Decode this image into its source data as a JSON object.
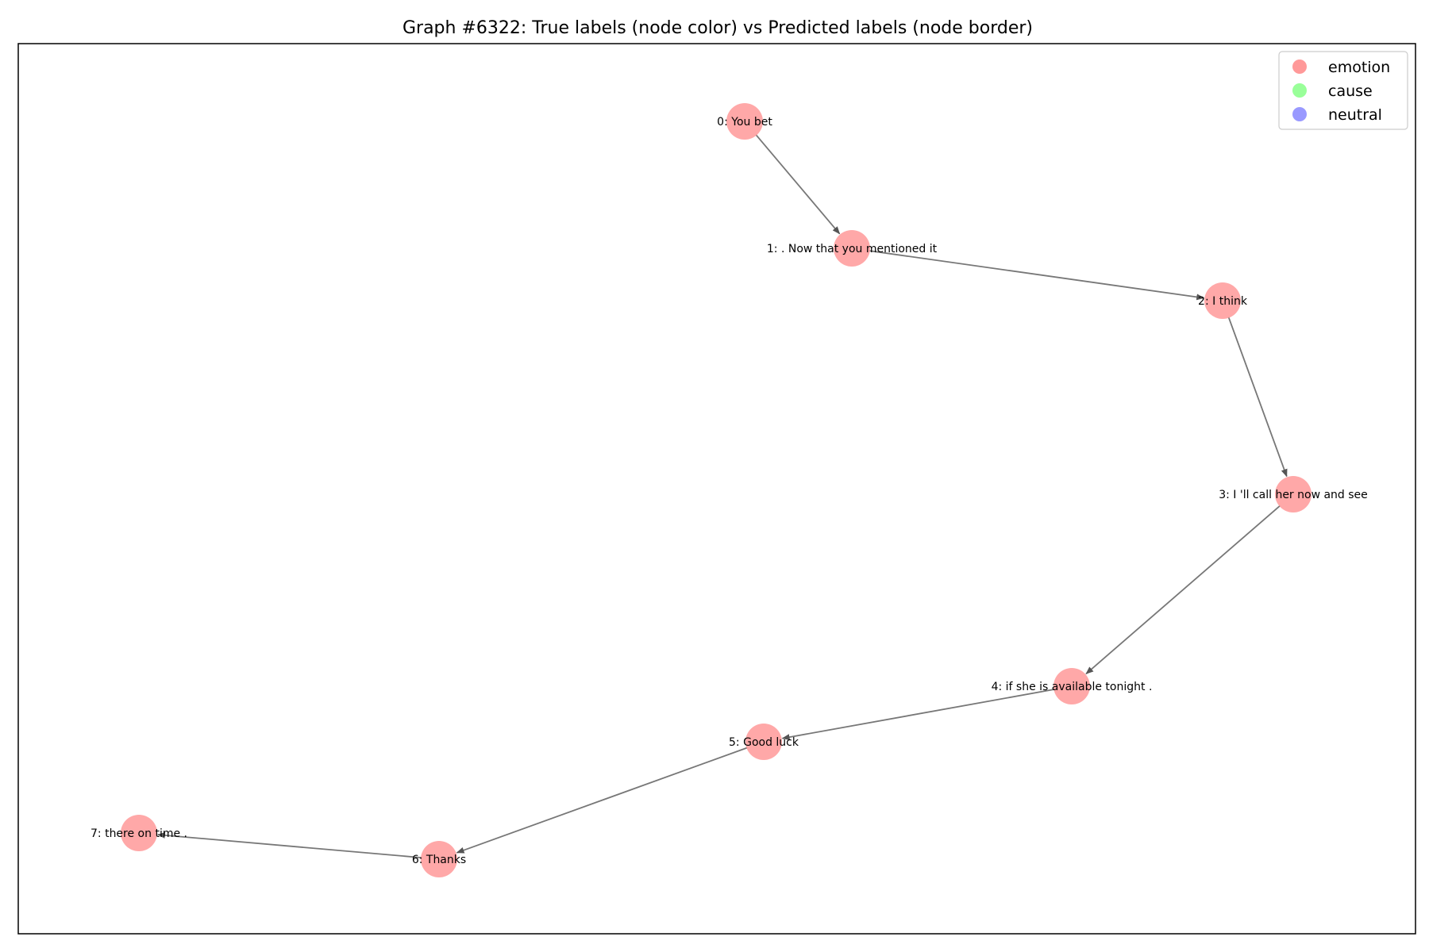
{
  "title": "Graph #6322: True labels (node color) vs Predicted labels (node border)",
  "legend": {
    "placement": "top-right",
    "items": [
      {
        "label": "emotion",
        "color": "#ff9999"
      },
      {
        "label": "cause",
        "color": "#99ff99"
      },
      {
        "label": "neutral",
        "color": "#9999ff"
      }
    ]
  },
  "edge_color": "#777777",
  "nodes": [
    {
      "id": 0,
      "label": "0: You bet",
      "true_label": "emotion"
    },
    {
      "id": 1,
      "label": "1: . Now that you mentioned it",
      "true_label": "emotion"
    },
    {
      "id": 2,
      "label": "2: I think",
      "true_label": "emotion"
    },
    {
      "id": 3,
      "label": "3: I 'll call her now and see",
      "true_label": "emotion"
    },
    {
      "id": 4,
      "label": "4: if she is available tonight .",
      "true_label": "emotion"
    },
    {
      "id": 5,
      "label": "5: Good luck",
      "true_label": "emotion"
    },
    {
      "id": 6,
      "label": "6: Thanks",
      "true_label": "emotion"
    },
    {
      "id": 7,
      "label": "7: there on time .",
      "true_label": "emotion"
    }
  ],
  "edges": [
    {
      "from": 0,
      "to": 1
    },
    {
      "from": 1,
      "to": 2
    },
    {
      "from": 2,
      "to": 3
    },
    {
      "from": 3,
      "to": 4
    },
    {
      "from": 4,
      "to": 5
    },
    {
      "from": 5,
      "to": 6
    },
    {
      "from": 6,
      "to": 7
    }
  ]
}
